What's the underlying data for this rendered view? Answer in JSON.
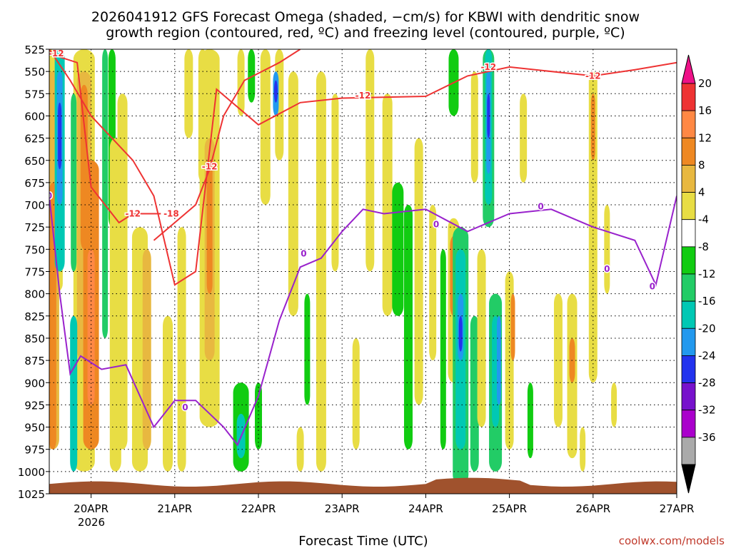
{
  "chart_data": {
    "type": "heatmap",
    "title_line1": "2026041912 GFS Forecast Omega (shaded, −cm/s) for KBWI with dendritic snow",
    "title_line2": "growth region (contoured, red, ºC) and freezing level (contoured, purple, ºC)",
    "xlabel": "Forecast Time (UTC)",
    "ylabel": "",
    "credit": "coolwx.com/models",
    "y_axis": {
      "unit": "hPa",
      "ticks": [
        "525",
        "550",
        "575",
        "600",
        "625",
        "650",
        "675",
        "700",
        "725",
        "750",
        "775",
        "800",
        "825",
        "850",
        "875",
        "900",
        "925",
        "950",
        "975",
        "1000",
        "1025"
      ],
      "ylim": [
        525,
        1025
      ],
      "inverted": true
    },
    "x_axis": {
      "ticks": [
        "20APR",
        "21APR",
        "22APR",
        "23APR",
        "24APR",
        "25APR",
        "26APR",
        "27APR"
      ],
      "year_label": "2026",
      "xlim": [
        "2026-04-19T12",
        "2026-04-27T00"
      ]
    },
    "grid": true,
    "colorbar": {
      "placement": "right",
      "labels": [
        "20",
        "16",
        "12",
        "8",
        "4",
        "-4",
        "-8",
        "-12",
        "-16",
        "-20",
        "-24",
        "-28",
        "-32",
        "-36"
      ],
      "colors": [
        "#ff66aa",
        "#ee3333",
        "#ff8844",
        "#ee8822",
        "#e8b840",
        "#e8dd44",
        "#ffffff",
        "#11cc11",
        "#22cc66",
        "#00c8b4",
        "#2299ee",
        "#2233ee",
        "#7711cc",
        "#aa00cc",
        "#aaaaaa",
        "#000000"
      ],
      "top_triangle_color": "#ee1188",
      "bottom_triangle_color": "#000000"
    },
    "contours": {
      "dgz": {
        "color": "#ee3333",
        "labels": [
          {
            "text": "-12",
            "time": "2026-04-19T14",
            "pressure": 530
          },
          {
            "text": "-12",
            "time": "2026-04-20T12",
            "pressure": 710
          },
          {
            "text": "-18",
            "time": "2026-04-20T23",
            "pressure": 710
          },
          {
            "text": "-12",
            "time": "2026-04-21T10",
            "pressure": 657
          },
          {
            "text": "-12",
            "time": "2026-04-23T06",
            "pressure": 577
          },
          {
            "text": "-12",
            "time": "2026-04-24T18",
            "pressure": 545
          },
          {
            "text": "-12",
            "time": "2026-04-26T00",
            "pressure": 555
          }
        ],
        "paths": [
          [
            [
              "2026-04-19T12",
              525
            ],
            [
              "2026-04-19T18",
              560
            ],
            [
              "2026-04-20T00",
              600
            ],
            [
              "2026-04-20T06",
              625
            ],
            [
              "2026-04-20T12",
              650
            ],
            [
              "2026-04-20T18",
              690
            ],
            [
              "2026-04-21T00",
              790
            ],
            [
              "2026-04-21T06",
              775
            ],
            [
              "2026-04-21T12",
              570
            ],
            [
              "2026-04-22T00",
              610
            ],
            [
              "2026-04-22T12",
              585
            ],
            [
              "2026-04-23T00",
              580
            ],
            [
              "2026-04-24T00",
              578
            ],
            [
              "2026-04-24T12",
              555
            ],
            [
              "2026-04-25T00",
              545
            ],
            [
              "2026-04-26T00",
              555
            ],
            [
              "2026-04-26T12",
              548
            ],
            [
              "2026-04-27T00",
              540
            ]
          ],
          [
            [
              "2026-04-19T12",
              530
            ],
            [
              "2026-04-19T20",
              540
            ],
            [
              "2026-04-20T00",
              680
            ],
            [
              "2026-04-20T08",
              720
            ],
            [
              "2026-04-20T12",
              710
            ],
            [
              "2026-04-20T20",
              710
            ]
          ],
          [
            [
              "2026-04-20T18",
              740
            ],
            [
              "2026-04-21T00",
              720
            ],
            [
              "2026-04-21T06",
              700
            ],
            [
              "2026-04-21T10",
              660
            ],
            [
              "2026-04-21T14",
              600
            ],
            [
              "2026-04-21T20",
              560
            ],
            [
              "2026-04-22T06",
              540
            ],
            [
              "2026-04-22T12",
              525
            ]
          ]
        ]
      },
      "freezing": {
        "color": "#9922cc",
        "labels": [
          {
            "text": "0",
            "time": "2026-04-19T12",
            "pressure": 690
          },
          {
            "text": "0",
            "time": "2026-04-21T03",
            "pressure": 928
          },
          {
            "text": "0",
            "time": "2026-04-22T13",
            "pressure": 755
          },
          {
            "text": "0",
            "time": "2026-04-24T03",
            "pressure": 722
          },
          {
            "text": "0",
            "time": "2026-04-25T09",
            "pressure": 702
          },
          {
            "text": "0",
            "time": "2026-04-26T04",
            "pressure": 772
          },
          {
            "text": "0",
            "time": "2026-04-26T17",
            "pressure": 792
          }
        ],
        "paths": [
          [
            [
              "2026-04-19T12",
              690
            ],
            [
              "2026-04-19T15",
              800
            ],
            [
              "2026-04-19T18",
              890
            ],
            [
              "2026-04-19T21",
              870
            ],
            [
              "2026-04-20T03",
              885
            ],
            [
              "2026-04-20T10",
              880
            ],
            [
              "2026-04-20T18",
              950
            ],
            [
              "2026-04-21T00",
              920
            ],
            [
              "2026-04-21T06",
              920
            ],
            [
              "2026-04-21T14",
              950
            ],
            [
              "2026-04-21T18",
              970
            ],
            [
              "2026-04-22T00",
              915
            ],
            [
              "2026-04-22T06",
              830
            ],
            [
              "2026-04-22T12",
              770
            ],
            [
              "2026-04-22T18",
              760
            ],
            [
              "2026-04-23T00",
              730
            ],
            [
              "2026-04-23T06",
              705
            ],
            [
              "2026-04-23T12",
              710
            ],
            [
              "2026-04-24T00",
              705
            ],
            [
              "2026-04-24T12",
              730
            ],
            [
              "2026-04-25T00",
              710
            ],
            [
              "2026-04-25T12",
              705
            ],
            [
              "2026-04-26T00",
              725
            ],
            [
              "2026-04-26T12",
              740
            ],
            [
              "2026-04-26T18",
              790
            ],
            [
              "2026-04-27T00",
              690
            ]
          ]
        ]
      }
    }
  }
}
